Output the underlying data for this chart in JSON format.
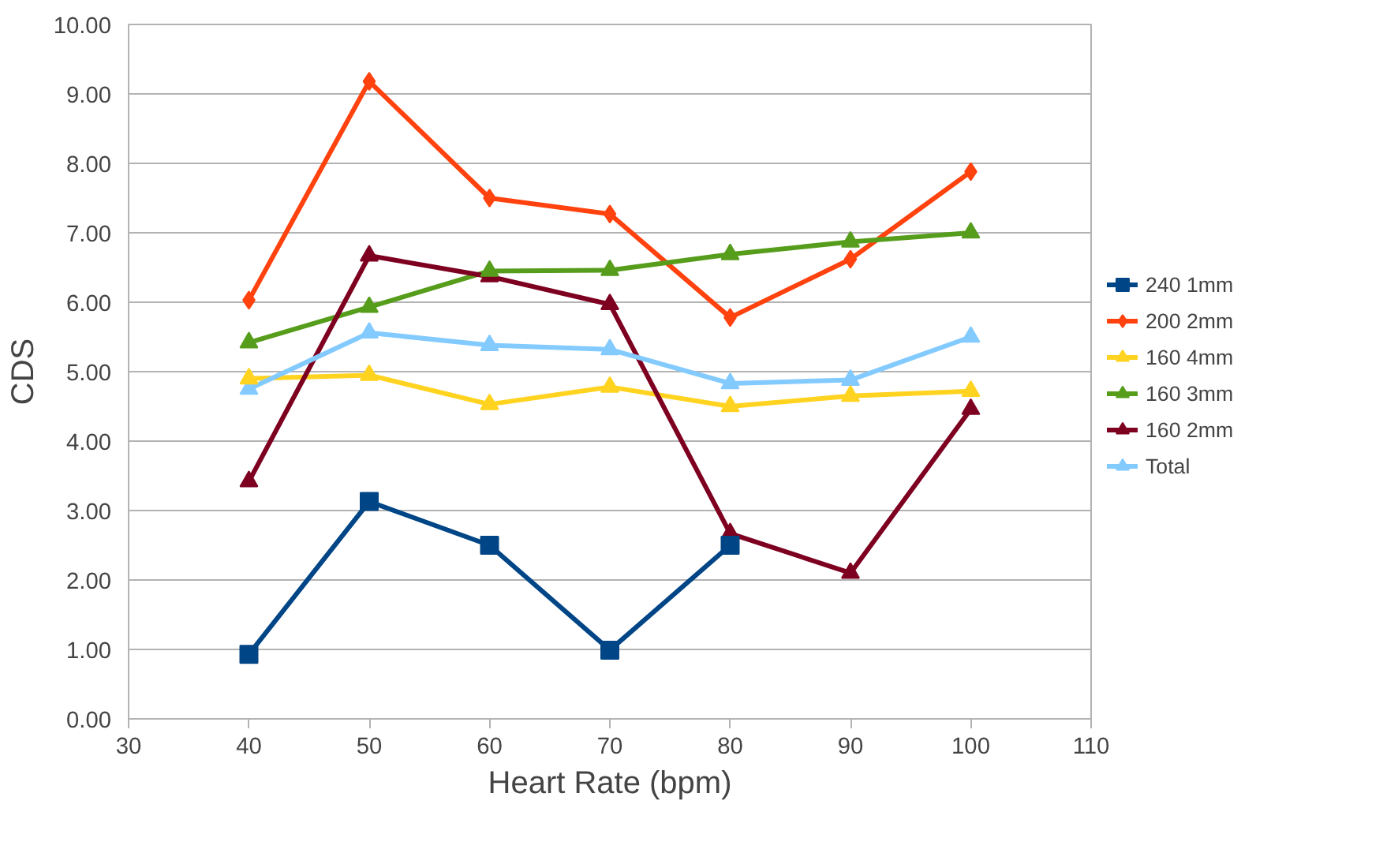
{
  "chart_data": {
    "type": "line",
    "xlabel": "Heart Rate (bpm)",
    "ylabel": "CDS",
    "x": [
      40,
      50,
      60,
      70,
      80,
      90,
      100
    ],
    "series": [
      {
        "name": "240 1mm",
        "color": "#004586",
        "marker": "square",
        "values": [
          0.93,
          3.13,
          2.5,
          0.99,
          2.5,
          null,
          null
        ]
      },
      {
        "name": "200 2mm",
        "color": "#ff420e",
        "marker": "diamond",
        "values": [
          6.03,
          9.18,
          7.5,
          7.27,
          5.78,
          6.62,
          7.88
        ]
      },
      {
        "name": "160 4mm",
        "color": "#ffd320",
        "marker": "triangle",
        "values": [
          4.9,
          4.95,
          4.53,
          4.78,
          4.5,
          4.65,
          4.72
        ]
      },
      {
        "name": "160 3mm",
        "color": "#579d1c",
        "marker": "triangle",
        "values": [
          5.42,
          5.93,
          6.45,
          6.46,
          6.69,
          6.87,
          7.0
        ]
      },
      {
        "name": "160 2mm",
        "color": "#7e0021",
        "marker": "triangle",
        "values": [
          3.42,
          6.67,
          6.37,
          5.97,
          2.67,
          2.1,
          4.46
        ]
      },
      {
        "name": "Total",
        "color": "#83caff",
        "marker": "triangle",
        "values": [
          4.75,
          5.56,
          5.38,
          5.32,
          4.83,
          4.88,
          5.5
        ]
      }
    ],
    "xlim": [
      30,
      110
    ],
    "xticks": [
      30,
      40,
      50,
      60,
      70,
      80,
      90,
      100,
      110
    ],
    "ylim": [
      0,
      10
    ],
    "yticks": [
      {
        "value": 0,
        "label": "0.00"
      },
      {
        "value": 1,
        "label": "1.00"
      },
      {
        "value": 2,
        "label": "2.00"
      },
      {
        "value": 3,
        "label": "3.00"
      },
      {
        "value": 4,
        "label": "4.00"
      },
      {
        "value": 5,
        "label": "5.00"
      },
      {
        "value": 6,
        "label": "6.00"
      },
      {
        "value": 7,
        "label": "7.00"
      },
      {
        "value": 8,
        "label": "8.00"
      },
      {
        "value": 9,
        "label": "9.00"
      },
      {
        "value": 10,
        "label": "10.00"
      }
    ],
    "grid": "y",
    "legend": "right",
    "line_style": "solid"
  }
}
